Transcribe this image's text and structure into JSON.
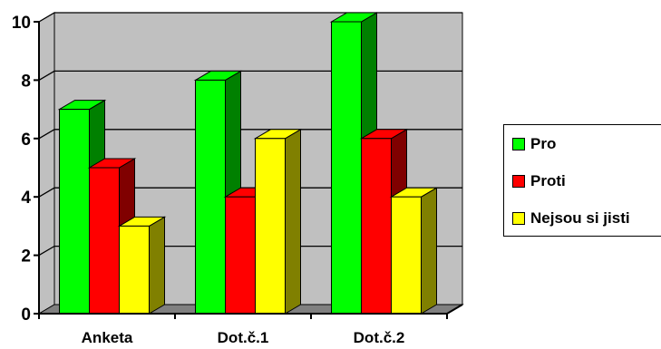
{
  "chart_data": {
    "type": "bar",
    "style": "3d-clustered",
    "categories": [
      "Anketa",
      "Dot.č.1",
      "Dot.č.2"
    ],
    "series": [
      {
        "name": "Pro",
        "values": [
          7,
          8,
          10
        ],
        "color": "#00ff00",
        "side_color": "#008000"
      },
      {
        "name": "Proti",
        "values": [
          5,
          4,
          6
        ],
        "color": "#ff0000",
        "side_color": "#800000"
      },
      {
        "name": "Nejsou si jisti",
        "values": [
          3,
          6,
          4
        ],
        "color": "#ffff00",
        "side_color": "#808000"
      }
    ],
    "yticks": [
      0,
      2,
      4,
      6,
      8,
      10
    ],
    "ylim": [
      0,
      10
    ],
    "grid": true,
    "wall_color": "#c0c0c0",
    "floor_color": "#808080",
    "legend_position": "right"
  }
}
